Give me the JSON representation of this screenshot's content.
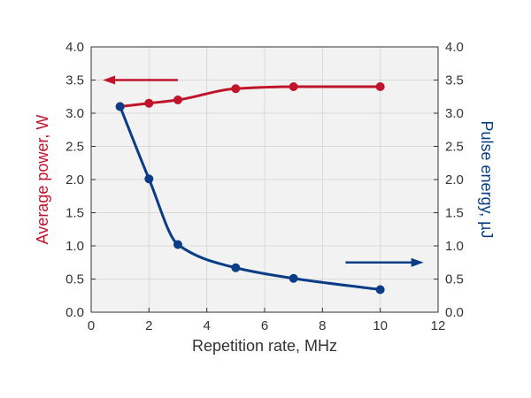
{
  "chart_data": {
    "type": "line",
    "title": "",
    "xlabel": "Repetition rate, MHz",
    "ylabel_left": "Average power, W",
    "ylabel_right": "Pulse energy, µJ",
    "xlim": [
      0,
      12
    ],
    "ylim_left": [
      0,
      4.0
    ],
    "ylim_right": [
      0,
      4.0
    ],
    "x_ticks": [
      "0",
      "2",
      "4",
      "6",
      "8",
      "10",
      "12"
    ],
    "y_ticks_left": [
      "0.0",
      "0.5",
      "1.0",
      "1.5",
      "2.0",
      "2.5",
      "3.0",
      "3.5",
      "4.0"
    ],
    "y_ticks_right": [
      "0.0",
      "0.5",
      "1.0",
      "1.5",
      "2.0",
      "2.5",
      "3.0",
      "3.5",
      "4.0"
    ],
    "grid": true,
    "series": [
      {
        "axis": "left",
        "color": "#c0142a",
        "x": [
          1,
          2,
          3,
          5,
          7,
          10
        ],
        "values": [
          3.1,
          3.15,
          3.2,
          3.37,
          3.4,
          3.4
        ],
        "arrow": {
          "direction": "left",
          "from_x": 3.0,
          "to_x": 0.4,
          "y": 3.5
        }
      },
      {
        "axis": "right",
        "color": "#0a3d86",
        "x": [
          1,
          2,
          3,
          5,
          7,
          10
        ],
        "values": [
          3.1,
          2.01,
          1.02,
          0.67,
          0.51,
          0.34
        ],
        "arrow": {
          "direction": "right",
          "from_x": 8.8,
          "to_x": 11.5,
          "y": 0.75
        }
      }
    ],
    "colors": {
      "left_axis": "#c0142a",
      "right_axis": "#0a3d86",
      "grid": "#d9d9d9",
      "plot_bg": "#f2f2f2"
    }
  }
}
